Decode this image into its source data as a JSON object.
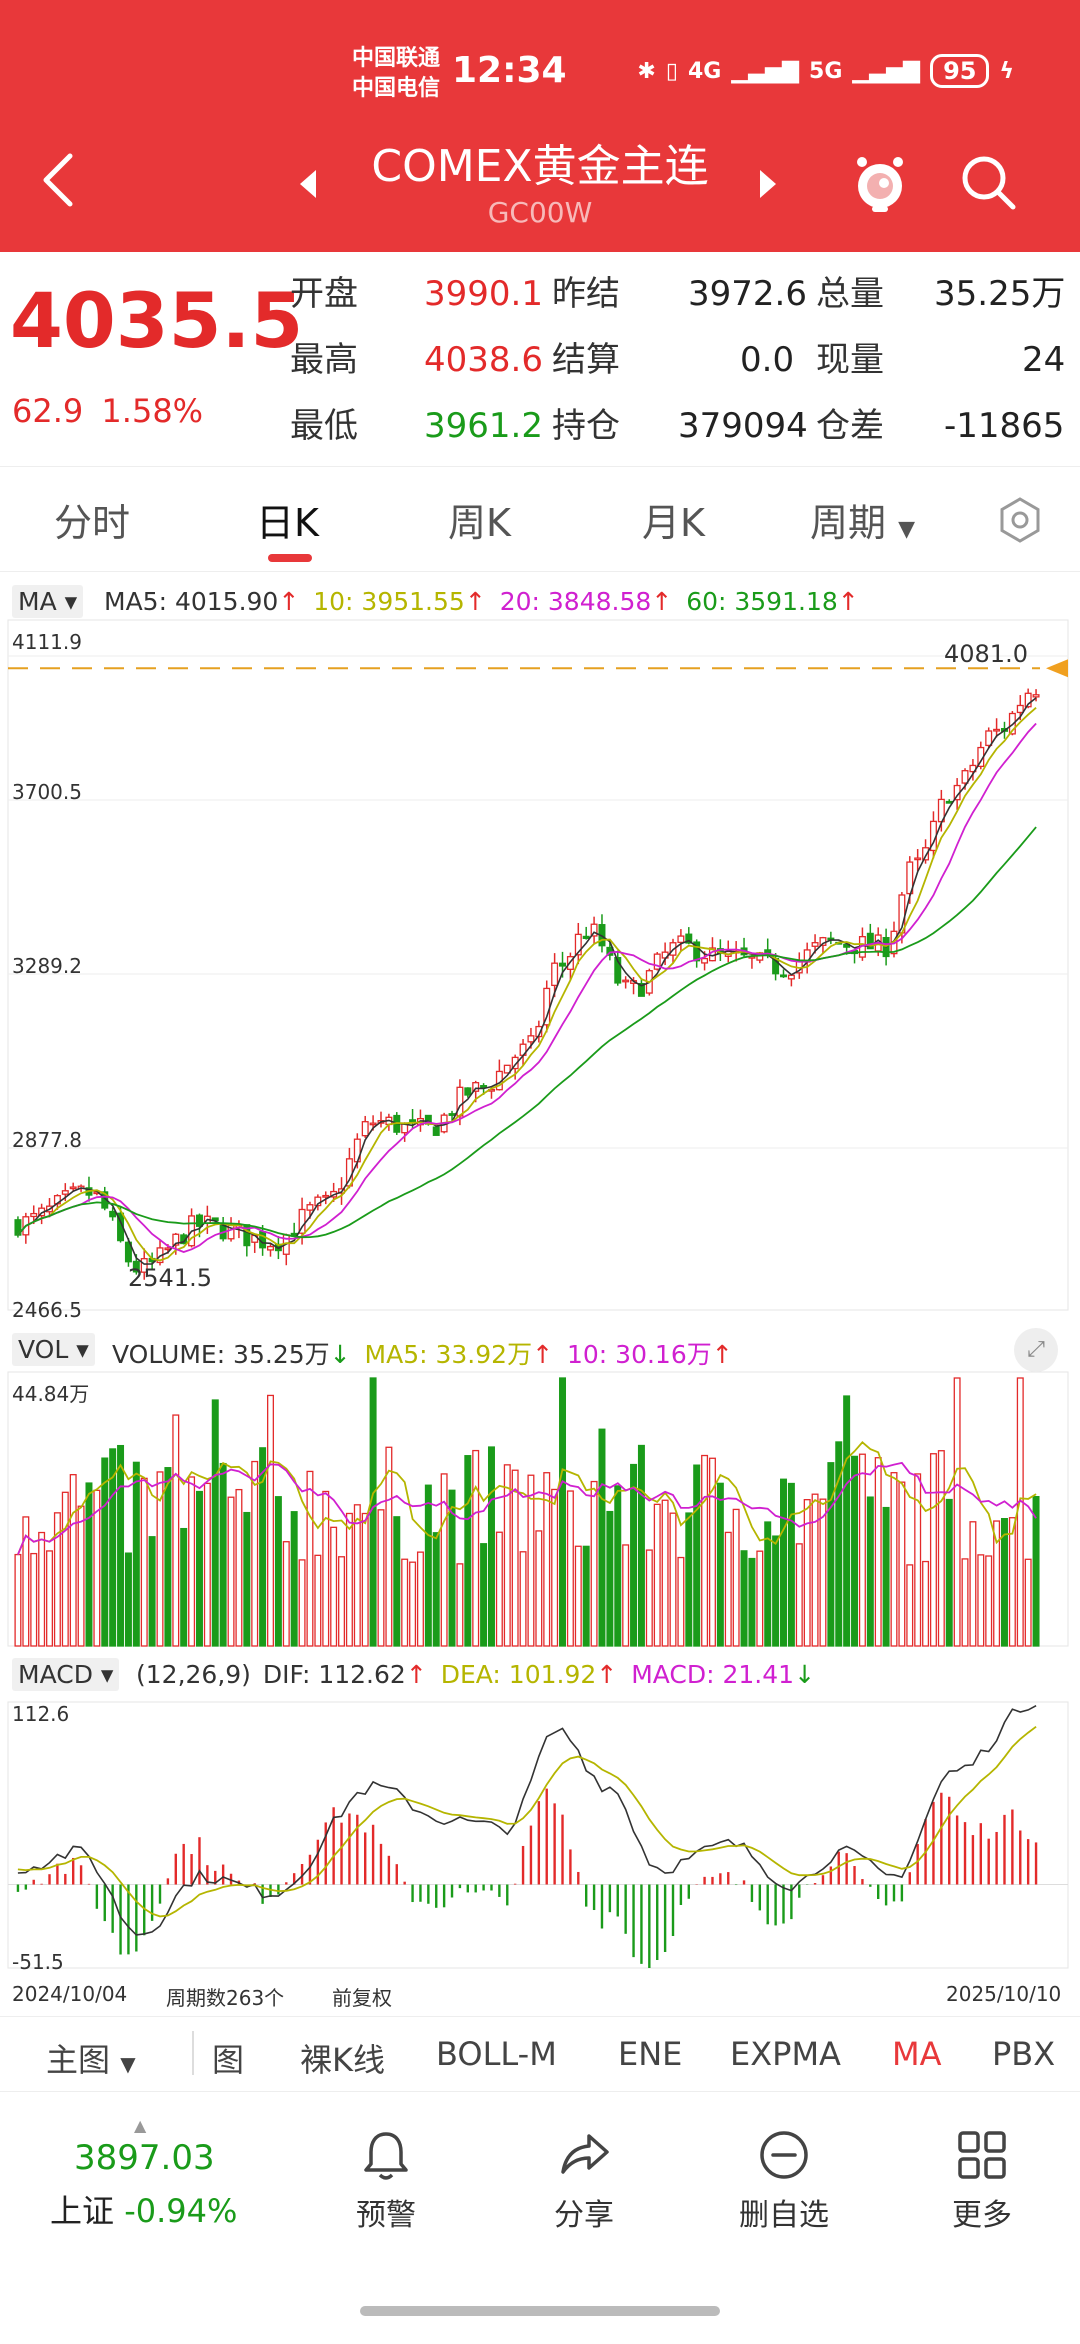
{
  "status": {
    "carrier1": "中国联通",
    "carrier2": "中国电信",
    "time": "12:34",
    "network1": "4G",
    "network2": "5G",
    "battery": "95"
  },
  "header": {
    "title": "COMEX黄金主连",
    "subtitle": "GC00W"
  },
  "quote": {
    "price": "4035.5",
    "change": "62.9",
    "change_pct": "1.58%",
    "open_label": "开盘",
    "open": "3990.1",
    "prev_close_label": "昨结",
    "prev_close": "3972.6",
    "total_vol_label": "总量",
    "total_vol": "35.25万",
    "high_label": "最高",
    "high": "4038.6",
    "settle_label": "结算",
    "settle": "0.0",
    "cur_vol_label": "现量",
    "cur_vol": "24",
    "low_label": "最低",
    "low": "3961.2",
    "position_label": "持仓",
    "position": "379094",
    "pos_diff_label": "仓差",
    "pos_diff": "-11865"
  },
  "tabs": [
    "分时",
    "日K",
    "周K",
    "月K",
    "周期"
  ],
  "ma_legend": {
    "tag": "MA",
    "ma5": "MA5: 4015.90",
    "ma10": "10: 3951.55",
    "ma20": "20: 3848.58",
    "ma60": "60: 3591.18"
  },
  "price_axis": {
    "top": "4111.9",
    "l2": "3700.5",
    "l3": "3289.2",
    "l4": "2877.8",
    "bottom": "2466.5",
    "high_mark": "4081.0",
    "low_mark": "2541.5"
  },
  "vol_legend": {
    "tag": "VOL",
    "volume": "VOLUME: 35.25万",
    "ma5": "MA5: 33.92万",
    "ma10": "10: 30.16万"
  },
  "vol_axis": {
    "top": "44.84万"
  },
  "macd_legend": {
    "tag": "MACD",
    "params": "(12,26,9)",
    "dif": "DIF: 112.62",
    "dea": "DEA: 101.92",
    "macd": "MACD: 21.41"
  },
  "macd_axis": {
    "top": "112.6",
    "bottom": "-51.5"
  },
  "footer": {
    "start_date": "2024/10/04",
    "periods": "周期数263个",
    "adjust": "前复权",
    "end_date": "2025/10/10"
  },
  "indicators": {
    "main": "主图",
    "img": "图",
    "bare": "裸K线",
    "boll": "BOLL-M",
    "ene": "ENE",
    "expma": "EXPMA",
    "ma": "MA",
    "pbx": "PBX"
  },
  "bottom": {
    "sh_value": "3897.03",
    "sh_label": "上证",
    "sh_pct": "-0.94%",
    "alert": "预警",
    "share": "分享",
    "remove": "删自选",
    "more": "更多"
  },
  "colors": {
    "header": "#e8383a",
    "up": "#e32a2a",
    "down": "#1a9b1a",
    "ma5": "#333333",
    "ma10": "#b5b500",
    "ma20": "#d020d0",
    "ma60": "#1a9b1a"
  },
  "chart_data": {
    "type": "candlestick",
    "price_range": [
      2466.5,
      4111.9
    ],
    "x_range": [
      "2024/10/04",
      "2025/10/10"
    ],
    "period_count": 263,
    "price_anchors": [
      {
        "x": 0.0,
        "y": 2685
      },
      {
        "x": 0.07,
        "y": 2760
      },
      {
        "x": 0.12,
        "y": 2570
      },
      {
        "x": 0.18,
        "y": 2680
      },
      {
        "x": 0.25,
        "y": 2640
      },
      {
        "x": 0.3,
        "y": 2730
      },
      {
        "x": 0.35,
        "y": 2940
      },
      {
        "x": 0.4,
        "y": 2920
      },
      {
        "x": 0.45,
        "y": 3020
      },
      {
        "x": 0.5,
        "y": 3120
      },
      {
        "x": 0.53,
        "y": 3330
      },
      {
        "x": 0.56,
        "y": 3420
      },
      {
        "x": 0.6,
        "y": 3270
      },
      {
        "x": 0.65,
        "y": 3380
      },
      {
        "x": 0.7,
        "y": 3350
      },
      {
        "x": 0.75,
        "y": 3330
      },
      {
        "x": 0.8,
        "y": 3390
      },
      {
        "x": 0.85,
        "y": 3380
      },
      {
        "x": 0.88,
        "y": 3580
      },
      {
        "x": 0.92,
        "y": 3780
      },
      {
        "x": 0.96,
        "y": 3920
      },
      {
        "x": 1.0,
        "y": 4035
      }
    ],
    "dif_anchors": [
      {
        "x": 0.0,
        "y": 10
      },
      {
        "x": 0.06,
        "y": 20
      },
      {
        "x": 0.12,
        "y": -30
      },
      {
        "x": 0.18,
        "y": 5
      },
      {
        "x": 0.25,
        "y": -5
      },
      {
        "x": 0.35,
        "y": 60
      },
      {
        "x": 0.42,
        "y": 40
      },
      {
        "x": 0.48,
        "y": 35
      },
      {
        "x": 0.53,
        "y": 95
      },
      {
        "x": 0.58,
        "y": 60
      },
      {
        "x": 0.63,
        "y": 10
      },
      {
        "x": 0.7,
        "y": 25
      },
      {
        "x": 0.76,
        "y": 0
      },
      {
        "x": 0.81,
        "y": 20
      },
      {
        "x": 0.86,
        "y": 5
      },
      {
        "x": 0.92,
        "y": 70
      },
      {
        "x": 1.0,
        "y": 112.62
      }
    ],
    "macd_range": [
      -51.5,
      112.6
    ],
    "vol_max": "44.84万"
  }
}
